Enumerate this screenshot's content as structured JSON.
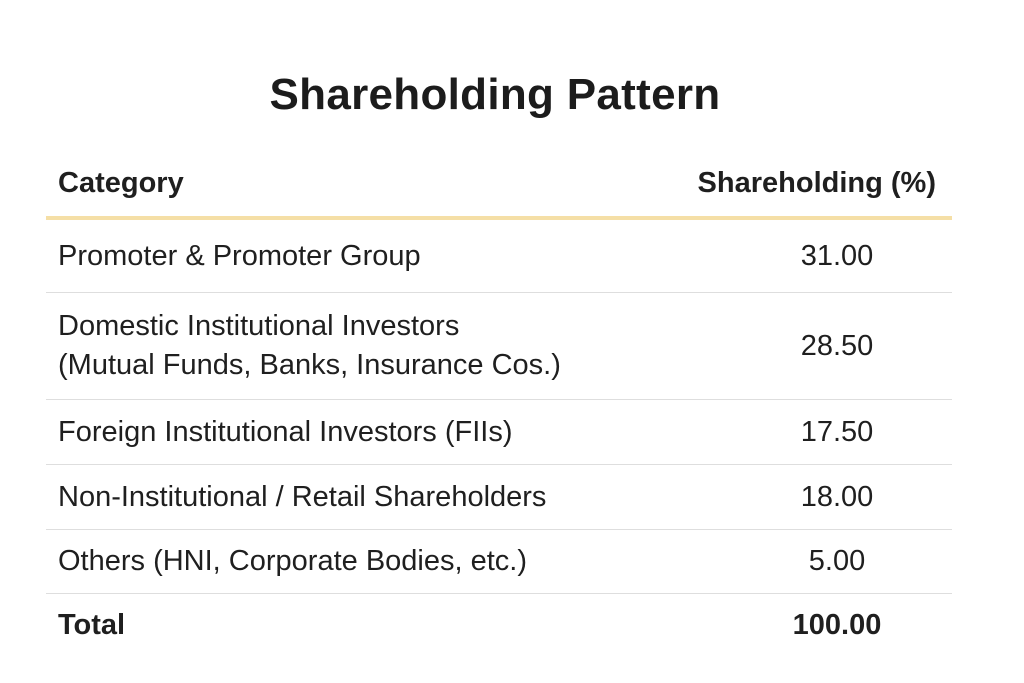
{
  "title": "Shareholding Pattern",
  "table": {
    "headers": {
      "category": "Category",
      "value": "Shareholding (%)"
    },
    "rows": [
      {
        "category_lines": [
          "Promoter & Promoter Group"
        ],
        "value": "31.00"
      },
      {
        "category_lines": [
          "Domestic Institutional Investors",
          "(Mutual Funds, Banks, Insurance Cos.)"
        ],
        "value": "28.50"
      },
      {
        "category_lines": [
          "Foreign Institutional Investors (FIIs)"
        ],
        "value": "17.50"
      },
      {
        "category_lines": [
          "Non-Institutional / Retail Shareholders"
        ],
        "value": "18.00"
      },
      {
        "category_lines": [
          "Others (HNI, Corporate Bodies, etc.)"
        ],
        "value": "5.00"
      }
    ],
    "total": {
      "category": "Total",
      "value": "100.00"
    },
    "colors": {
      "header_rule": "#f5dfa6",
      "row_rule": "#dedede",
      "text": "#1f1f1f"
    }
  }
}
